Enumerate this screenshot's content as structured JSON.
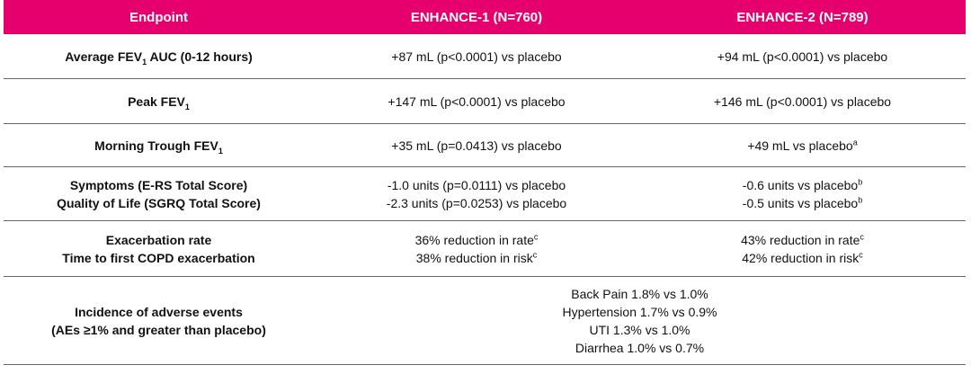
{
  "table": {
    "header": [
      "Endpoint",
      "ENHANCE-1 (N=760)",
      "ENHANCE-2 (N=789)"
    ],
    "rows": [
      [
        [
          [
            "Average FEV",
            {
              "sub": "1"
            },
            " AUC (0-12 hours)"
          ]
        ],
        [
          [
            "+87 mL (p<0.0001) vs placebo"
          ]
        ],
        [
          [
            "+94 mL (p<0.0001) vs placebo"
          ]
        ]
      ],
      [
        [
          [
            "Peak FEV",
            {
              "sub": "1"
            }
          ]
        ],
        [
          [
            "+147 mL (p<0.0001) vs placebo"
          ]
        ],
        [
          [
            "+146 mL (p<0.0001) vs placebo"
          ]
        ]
      ],
      [
        [
          [
            "Morning Trough FEV",
            {
              "sub": "1"
            }
          ]
        ],
        [
          [
            "+35 mL (p=0.0413) vs placebo"
          ]
        ],
        [
          [
            "+49 mL vs placebo",
            {
              "sup": "a"
            }
          ]
        ]
      ],
      [
        [
          [
            "Symptoms (E-RS Total Score)"
          ],
          [
            "Quality of Life (SGRQ Total Score)"
          ]
        ],
        [
          [
            "-1.0 units (p=0.0111) vs placebo"
          ],
          [
            "-2.3 units (p=0.0253) vs placebo"
          ]
        ],
        [
          [
            "-0.6 units vs placebo",
            {
              "sup": "b"
            }
          ],
          [
            "-0.5 units vs placebo",
            {
              "sup": "b"
            }
          ]
        ]
      ],
      [
        [
          [
            "Exacerbation rate"
          ],
          [
            "Time to first COPD exacerbation"
          ]
        ],
        [
          [
            "36% reduction in rate",
            {
              "sup": "c"
            }
          ],
          [
            "38% reduction in risk",
            {
              "sup": "c"
            }
          ]
        ],
        [
          [
            "43% reduction in rate",
            {
              "sup": "c"
            }
          ],
          [
            "42% reduction in risk",
            {
              "sup": "c"
            }
          ]
        ]
      ],
      [
        [
          [
            "Incidence of adverse events"
          ],
          [
            "(AEs ≥1% and greater than placebo)"
          ]
        ],
        [
          [
            "Back Pain 1.8% vs 1.0%"
          ],
          [
            "Hypertension 1.7% vs 0.9%"
          ],
          [
            "UTI 1.3% vs 1.0%"
          ],
          [
            "Diarrhea 1.0% vs 0.7%"
          ]
        ]
      ]
    ]
  }
}
